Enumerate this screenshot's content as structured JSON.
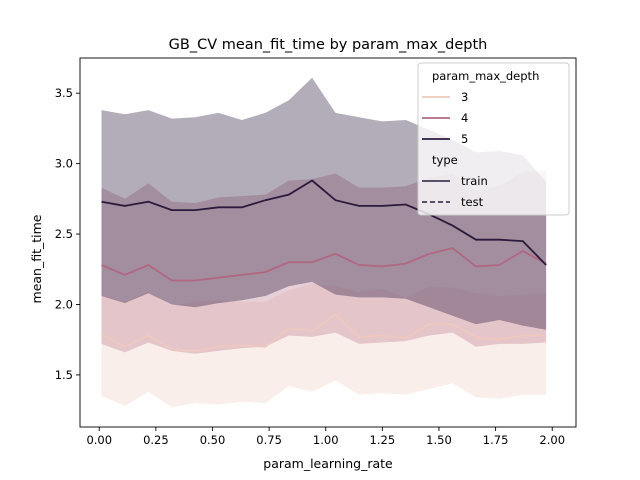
{
  "chart_data": {
    "type": "line",
    "title": "GB_CV mean_fit_time by param_max_depth",
    "xlabel": "param_learning_rate",
    "ylabel": "mean_fit_time",
    "xlim": [
      -0.085,
      2.105
    ],
    "ylim": [
      1.13,
      3.75
    ],
    "xticks": [
      0.0,
      0.25,
      0.5,
      0.75,
      1.0,
      1.25,
      1.5,
      1.75,
      2.0
    ],
    "xtick_labels": [
      "0.00",
      "0.25",
      "0.50",
      "0.75",
      "1.00",
      "1.25",
      "1.50",
      "1.75",
      "2.00"
    ],
    "yticks": [
      1.5,
      2.0,
      2.5,
      3.0,
      3.5
    ],
    "ytick_labels": [
      "1.5",
      "2.0",
      "2.5",
      "3.0",
      "3.5"
    ],
    "grid": false,
    "legend_position": "top-right",
    "legend": {
      "hue_title": "param_max_depth",
      "hue_entries": [
        {
          "label": "3",
          "color": "#f0c8bd"
        },
        {
          "label": "4",
          "color": "#b0677f"
        },
        {
          "label": "5",
          "color": "#2b1a3c"
        }
      ],
      "style_title": "type",
      "style_entries": [
        {
          "label": "train",
          "dash": "solid"
        },
        {
          "label": "test",
          "dash": "dashed"
        }
      ]
    },
    "x": [
      0.01,
      0.113,
      0.217,
      0.32,
      0.423,
      0.527,
      0.63,
      0.733,
      0.837,
      0.94,
      1.043,
      1.147,
      1.25,
      1.353,
      1.457,
      1.56,
      1.663,
      1.767,
      1.87,
      1.973
    ],
    "series": [
      {
        "name": "3",
        "color": "#f0c8bd",
        "values": [
          1.79,
          1.7,
          1.78,
          1.68,
          1.67,
          1.7,
          1.71,
          1.7,
          1.83,
          1.81,
          1.93,
          1.77,
          1.78,
          1.76,
          1.86,
          1.86,
          1.77,
          1.75,
          1.78,
          1.78
        ],
        "ci_low": [
          1.35,
          1.28,
          1.38,
          1.27,
          1.3,
          1.29,
          1.31,
          1.3,
          1.42,
          1.38,
          1.46,
          1.36,
          1.37,
          1.36,
          1.4,
          1.44,
          1.34,
          1.33,
          1.36,
          1.36
        ],
        "ci_high": [
          2.06,
          2.02,
          2.09,
          1.99,
          2.02,
          2.03,
          2.02,
          2.02,
          2.1,
          2.15,
          2.13,
          2.09,
          2.11,
          2.05,
          2.13,
          2.12,
          2.08,
          2.06,
          2.07,
          2.08
        ]
      },
      {
        "name": "4",
        "color": "#b0677f",
        "values": [
          2.28,
          2.21,
          2.28,
          2.17,
          2.17,
          2.19,
          2.21,
          2.23,
          2.3,
          2.3,
          2.36,
          2.28,
          2.27,
          2.29,
          2.36,
          2.4,
          2.27,
          2.28,
          2.38,
          2.29
        ],
        "ci_low": [
          1.72,
          1.66,
          1.73,
          1.67,
          1.65,
          1.67,
          1.69,
          1.7,
          1.78,
          1.77,
          1.8,
          1.72,
          1.73,
          1.74,
          1.78,
          1.8,
          1.7,
          1.72,
          1.72,
          1.73
        ],
        "ci_high": [
          2.83,
          2.75,
          2.86,
          2.73,
          2.72,
          2.76,
          2.77,
          2.78,
          2.88,
          2.89,
          2.93,
          2.83,
          2.83,
          2.84,
          2.9,
          2.93,
          2.81,
          2.84,
          2.94,
          2.95
        ]
      },
      {
        "name": "5",
        "color": "#2b1a3c",
        "values": [
          2.73,
          2.7,
          2.73,
          2.67,
          2.67,
          2.69,
          2.69,
          2.74,
          2.78,
          2.88,
          2.74,
          2.7,
          2.7,
          2.71,
          2.64,
          2.56,
          2.46,
          2.46,
          2.45,
          2.28
        ],
        "ci_low": [
          2.06,
          2.01,
          2.08,
          2.0,
          1.98,
          2.01,
          2.03,
          2.06,
          2.13,
          2.16,
          2.07,
          2.05,
          2.05,
          2.04,
          1.98,
          1.92,
          1.86,
          1.89,
          1.85,
          1.82
        ],
        "ci_high": [
          3.38,
          3.35,
          3.38,
          3.32,
          3.33,
          3.36,
          3.31,
          3.36,
          3.45,
          3.61,
          3.36,
          3.33,
          3.3,
          3.31,
          3.24,
          3.17,
          3.08,
          3.09,
          3.06,
          2.87
        ]
      }
    ]
  }
}
